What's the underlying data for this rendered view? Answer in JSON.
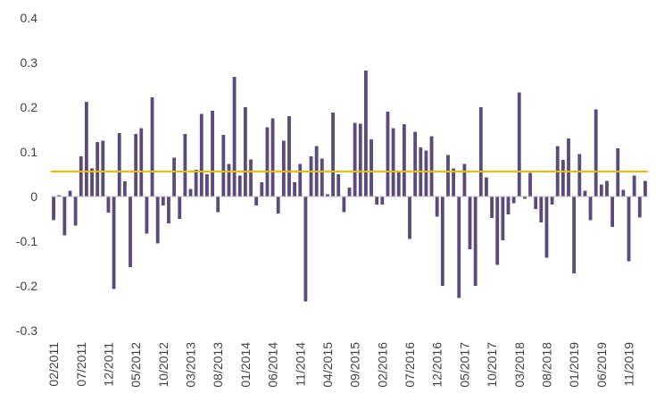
{
  "chart_data": {
    "type": "bar",
    "title": "",
    "xlabel": "",
    "ylabel": "",
    "ylim": [
      -0.3,
      0.4
    ],
    "yticks": [
      -0.3,
      -0.2,
      -0.1,
      0,
      0.1,
      0.2,
      0.3,
      0.4
    ],
    "ytick_labels": [
      "-0.3",
      "-0.2",
      "-0.1",
      "0",
      "0.1",
      "0.2",
      "0.3",
      "0.4"
    ],
    "grid": false,
    "legend": "none",
    "x_start": "02/2011",
    "x_end": "12/2019",
    "x_tick_labels": [
      "02/2011",
      "07/2011",
      "12/2011",
      "05/2012",
      "10/2012",
      "03/2013",
      "08/2013",
      "01/2014",
      "06/2014",
      "11/2014",
      "04/2015",
      "09/2015",
      "02/2016",
      "07/2016",
      "12/2016",
      "05/2017",
      "10/2017",
      "03/2018",
      "08/2018",
      "01/2019",
      "06/2019",
      "11/2019"
    ],
    "values": [
      -0.053,
      0.003,
      -0.087,
      0.013,
      -0.065,
      0.09,
      0.212,
      0.063,
      0.122,
      0.125,
      -0.036,
      -0.207,
      0.142,
      0.034,
      -0.158,
      0.14,
      0.153,
      -0.083,
      0.222,
      -0.105,
      -0.02,
      -0.06,
      0.087,
      -0.05,
      0.14,
      0.017,
      0.06,
      0.185,
      0.05,
      0.192,
      -0.035,
      0.138,
      0.073,
      0.268,
      0.047,
      0.2,
      0.083,
      -0.02,
      0.032,
      0.155,
      0.175,
      -0.038,
      0.125,
      0.18,
      0.032,
      0.073,
      -0.235,
      0.09,
      0.113,
      0.085,
      0.005,
      0.188,
      0.05,
      -0.035,
      0.02,
      0.165,
      0.163,
      0.282,
      0.128,
      -0.018,
      -0.018,
      0.19,
      0.153,
      0.055,
      0.162,
      -0.095,
      0.145,
      0.11,
      0.103,
      0.135,
      -0.045,
      -0.2,
      0.093,
      0.063,
      -0.227,
      0.073,
      -0.118,
      -0.2,
      0.2,
      0.043,
      -0.048,
      -0.153,
      -0.098,
      -0.04,
      -0.015,
      0.233,
      -0.005,
      0.053,
      -0.028,
      -0.058,
      -0.137,
      -0.018,
      0.113,
      0.082,
      0.13,
      -0.172,
      0.095,
      0.013,
      -0.053,
      0.195,
      0.027,
      0.035,
      -0.068,
      0.108,
      0.015,
      -0.145,
      0.047,
      -0.047,
      0.035
    ],
    "reference_line": 0.056,
    "colors": {
      "bars": "#5b4a7c",
      "reference_line": "#f2b705",
      "axis": "#bfbfbf",
      "text": "#404040"
    }
  }
}
